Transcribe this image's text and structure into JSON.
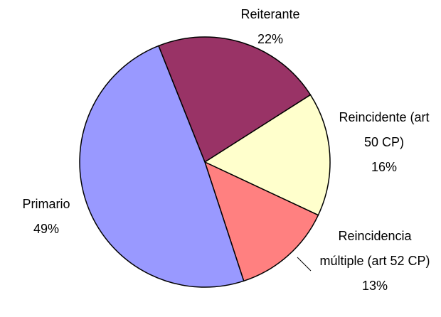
{
  "chart_data": {
    "type": "pie",
    "categories": [
      "Reiterante",
      "Reincidente (art 50 CP)",
      "Reincidencia múltiple (art 52 CP)",
      "Primario"
    ],
    "values": [
      22,
      16,
      13,
      49
    ],
    "value_labels": [
      "22%",
      "16%",
      "13%",
      "49%"
    ],
    "colors": [
      "#993366",
      "#ffffcc",
      "#ff8080",
      "#9999ff"
    ]
  }
}
